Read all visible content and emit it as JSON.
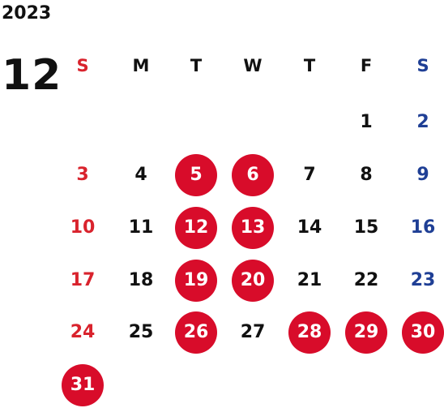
{
  "calendar": {
    "year": "2023",
    "month": "12",
    "weekdays": [
      "S",
      "M",
      "T",
      "W",
      "T",
      "F",
      "S"
    ],
    "weeks": [
      [
        null,
        null,
        null,
        null,
        null,
        1,
        2
      ],
      [
        3,
        4,
        5,
        6,
        7,
        8,
        9
      ],
      [
        10,
        11,
        12,
        13,
        14,
        15,
        16
      ],
      [
        17,
        18,
        19,
        20,
        21,
        22,
        23
      ],
      [
        24,
        25,
        26,
        27,
        28,
        29,
        30
      ],
      [
        31,
        null,
        null,
        null,
        null,
        null,
        null
      ]
    ],
    "highlighted_days": [
      5,
      6,
      12,
      13,
      19,
      20,
      26,
      28,
      29,
      30,
      31
    ]
  },
  "colors": {
    "sunday": "#d9232d",
    "saturday": "#1f3f95",
    "text": "#111111",
    "highlight_fill": "#d80c2a",
    "highlight_text": "#ffffff"
  }
}
